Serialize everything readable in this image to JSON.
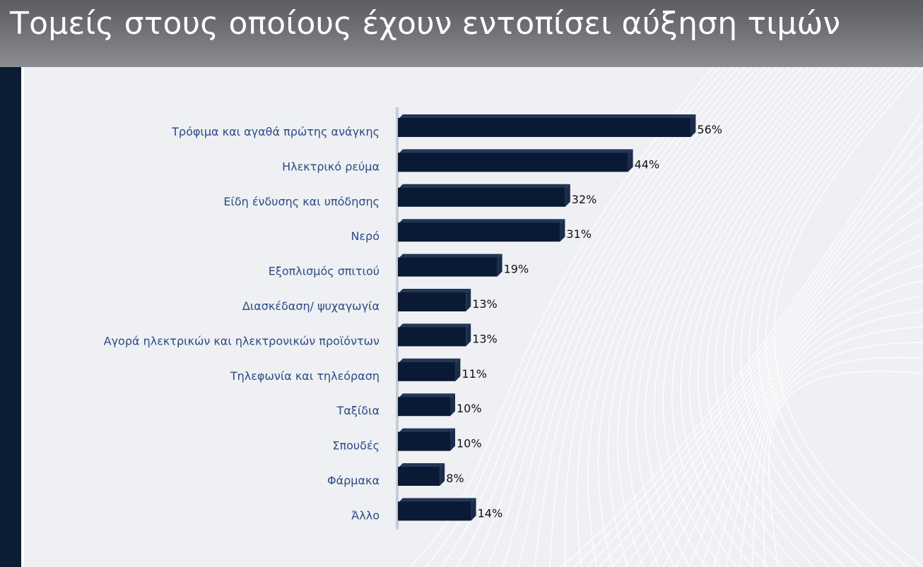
{
  "title": "Τομείς στους οποίους έχουν εντοπίσει αύξηση τιμών",
  "colors": {
    "bar": "#0a1a34",
    "bar_side": "#1a2c4c",
    "label": "#2c4a86",
    "title_bg": "#6f7176"
  },
  "chart_data": {
    "type": "bar",
    "orientation": "horizontal",
    "categories": [
      "Τρόφιμα και αγαθά πρώτης ανάγκης",
      "Ηλεκτρικό ρεύμα",
      "Είδη ένδυσης και υπόδησης",
      "Νερό",
      "Εξοπλισμός σπιτιού",
      "Διασκέδαση/ ψυχαγωγία",
      "Αγορά ηλεκτρικών και ηλεκτρονικών προϊόντων",
      "Τηλεφωνία και τηλεόραση",
      "Ταξίδια",
      "Σπουδές",
      "Φάρμακα",
      "Άλλο"
    ],
    "values": [
      56,
      44,
      32,
      31,
      19,
      13,
      13,
      11,
      10,
      10,
      8,
      14
    ],
    "value_labels": [
      "56%",
      "44%",
      "32%",
      "31%",
      "19%",
      "13%",
      "13%",
      "11%",
      "10%",
      "10%",
      "8%",
      "14%"
    ],
    "unit": "%"
  }
}
